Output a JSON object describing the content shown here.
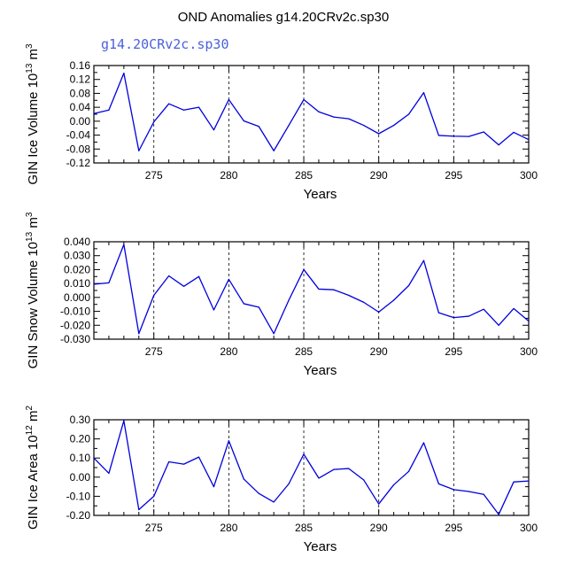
{
  "title": "OND Anomalies g14.20CRv2c.sp30",
  "colors": {
    "line": "#0000dd",
    "subtitle": "#4c60dd",
    "axis": "#000000"
  },
  "chart_data": [
    {
      "type": "line",
      "subtitle": "g14.20CRv2c.sp30",
      "ylabel": "GIN Ice Volume 10",
      "ylabel_exp": "13",
      "ylabel_unit": " m",
      "ylabel_unit_exp": "3",
      "xlabel": "Years",
      "xlim": [
        271,
        300
      ],
      "ylim": [
        -0.12,
        0.16
      ],
      "yticks": [
        -0.12,
        -0.08,
        -0.04,
        0.0,
        0.04,
        0.08,
        0.12,
        0.16
      ],
      "ytick_labels": [
        "-0.12",
        "-0.08",
        "-0.04",
        "0.00",
        "0.04",
        "0.08",
        "0.12",
        "0.16"
      ],
      "xticks": [
        275,
        280,
        285,
        290,
        295,
        300
      ],
      "xtick_labels": [
        "275",
        "280",
        "285",
        "290",
        "295",
        "300"
      ],
      "x": [
        271,
        272,
        273,
        274,
        275,
        276,
        277,
        278,
        279,
        280,
        281,
        282,
        283,
        284,
        285,
        286,
        287,
        288,
        289,
        290,
        291,
        292,
        293,
        294,
        295,
        296,
        297,
        298,
        299,
        300
      ],
      "values": [
        0.022,
        0.032,
        0.138,
        -0.085,
        -0.002,
        0.05,
        0.032,
        0.04,
        -0.025,
        0.062,
        0.001,
        -0.015,
        -0.085,
        -0.012,
        0.062,
        0.027,
        0.012,
        0.007,
        -0.012,
        -0.036,
        -0.012,
        0.02,
        0.082,
        -0.041,
        -0.043,
        -0.044,
        -0.031,
        -0.068,
        -0.032,
        -0.053
      ]
    },
    {
      "type": "line",
      "ylabel": "GIN Snow Volume 10",
      "ylabel_exp": "13",
      "ylabel_unit": " m",
      "ylabel_unit_exp": "3",
      "xlabel": "Years",
      "xlim": [
        271,
        300
      ],
      "ylim": [
        -0.03,
        0.04
      ],
      "yticks": [
        -0.03,
        -0.02,
        -0.01,
        0.0,
        0.01,
        0.02,
        0.03,
        0.04
      ],
      "ytick_labels": [
        "-0.030",
        "-0.020",
        "-0.010",
        "0.000",
        "0.010",
        "0.020",
        "0.030",
        "0.040"
      ],
      "xticks": [
        275,
        280,
        285,
        290,
        295,
        300
      ],
      "xtick_labels": [
        "275",
        "280",
        "285",
        "290",
        "295",
        "300"
      ],
      "x": [
        271,
        272,
        273,
        274,
        275,
        276,
        277,
        278,
        279,
        280,
        281,
        282,
        283,
        284,
        285,
        286,
        287,
        288,
        289,
        290,
        291,
        292,
        293,
        294,
        295,
        296,
        297,
        298,
        299,
        300
      ],
      "values": [
        0.0095,
        0.0105,
        0.038,
        -0.026,
        0.0015,
        0.0155,
        0.008,
        0.015,
        -0.009,
        0.013,
        -0.0045,
        -0.007,
        -0.026,
        -0.002,
        0.02,
        0.006,
        0.0055,
        0.0015,
        -0.0035,
        -0.0105,
        -0.002,
        0.0085,
        0.0265,
        -0.011,
        -0.0145,
        -0.0135,
        -0.0085,
        -0.02,
        -0.008,
        -0.017
      ]
    },
    {
      "type": "line",
      "ylabel": "GIN Ice Area 10",
      "ylabel_exp": "12",
      "ylabel_unit": " m",
      "ylabel_unit_exp": "2",
      "xlabel": "Years",
      "xlim": [
        271,
        300
      ],
      "ylim": [
        -0.2,
        0.3
      ],
      "yticks": [
        -0.2,
        -0.1,
        0.0,
        0.1,
        0.2,
        0.3
      ],
      "ytick_labels": [
        "-0.20",
        "-0.10",
        "0.00",
        "0.10",
        "0.20",
        "0.30"
      ],
      "xticks": [
        275,
        280,
        285,
        290,
        295,
        300
      ],
      "xtick_labels": [
        "275",
        "280",
        "285",
        "290",
        "295",
        "300"
      ],
      "x": [
        271,
        272,
        273,
        274,
        275,
        276,
        277,
        278,
        279,
        280,
        281,
        282,
        283,
        284,
        285,
        286,
        287,
        288,
        289,
        290,
        291,
        292,
        293,
        294,
        295,
        296,
        297,
        298,
        299,
        300
      ],
      "values": [
        0.1,
        0.02,
        0.295,
        -0.17,
        -0.1,
        0.08,
        0.068,
        0.105,
        -0.05,
        0.19,
        -0.01,
        -0.085,
        -0.13,
        -0.035,
        0.12,
        -0.005,
        0.04,
        0.045,
        -0.015,
        -0.14,
        -0.04,
        0.03,
        0.18,
        -0.035,
        -0.065,
        -0.075,
        -0.09,
        -0.195,
        -0.025,
        -0.02
      ]
    }
  ]
}
